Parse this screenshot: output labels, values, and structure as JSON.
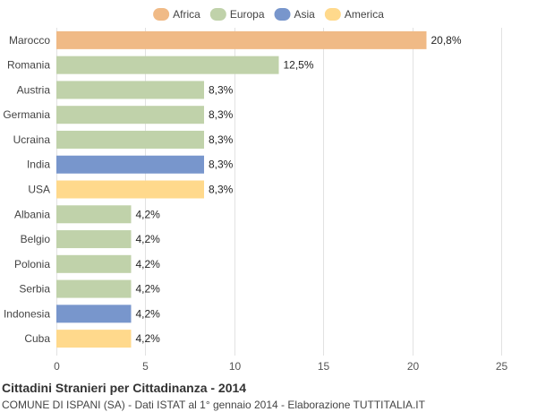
{
  "chart_data": {
    "type": "bar",
    "orientation": "horizontal",
    "title": "Cittadini Stranieri per Cittadinanza - 2014",
    "subtitle": "COMUNE DI ISPANI (SA) - Dati ISTAT al 1° gennaio 2014 - Elaborazione TUTTITALIA.IT",
    "xlim": [
      0,
      25
    ],
    "xticks": [
      0,
      5,
      10,
      15,
      20,
      25
    ],
    "grid": true,
    "legend_position": "top",
    "legend": [
      {
        "name": "Africa",
        "color": "#F0BA86"
      },
      {
        "name": "Europa",
        "color": "#C0D2AA"
      },
      {
        "name": "Asia",
        "color": "#7896CC"
      },
      {
        "name": "America",
        "color": "#FFD98C"
      }
    ],
    "bars": [
      {
        "category": "Marocco",
        "value": 20.8,
        "label": "20,8%",
        "group": "Africa"
      },
      {
        "category": "Romania",
        "value": 12.5,
        "label": "12,5%",
        "group": "Europa"
      },
      {
        "category": "Austria",
        "value": 8.3,
        "label": "8,3%",
        "group": "Europa"
      },
      {
        "category": "Germania",
        "value": 8.3,
        "label": "8,3%",
        "group": "Europa"
      },
      {
        "category": "Ucraina",
        "value": 8.3,
        "label": "8,3%",
        "group": "Europa"
      },
      {
        "category": "India",
        "value": 8.3,
        "label": "8,3%",
        "group": "Asia"
      },
      {
        "category": "USA",
        "value": 8.3,
        "label": "8,3%",
        "group": "America"
      },
      {
        "category": "Albania",
        "value": 4.2,
        "label": "4,2%",
        "group": "Europa"
      },
      {
        "category": "Belgio",
        "value": 4.2,
        "label": "4,2%",
        "group": "Europa"
      },
      {
        "category": "Polonia",
        "value": 4.2,
        "label": "4,2%",
        "group": "Europa"
      },
      {
        "category": "Serbia",
        "value": 4.2,
        "label": "4,2%",
        "group": "Europa"
      },
      {
        "category": "Indonesia",
        "value": 4.2,
        "label": "4,2%",
        "group": "Asia"
      },
      {
        "category": "Cuba",
        "value": 4.2,
        "label": "4,2%",
        "group": "America"
      }
    ]
  }
}
